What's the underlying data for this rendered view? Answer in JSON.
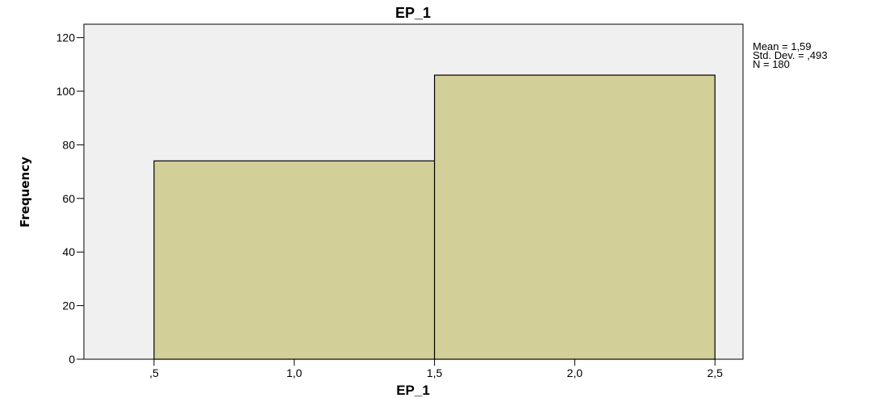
{
  "chart_data": {
    "type": "bar",
    "title": "EP_1",
    "xlabel": "EP_1",
    "ylabel": "Frequency",
    "bins": [
      {
        "x0": 0.5,
        "x1": 1.5,
        "value": 74
      },
      {
        "x0": 1.5,
        "x1": 2.5,
        "value": 106
      }
    ],
    "xlim": [
      0.25,
      2.6
    ],
    "ylim": [
      0,
      125
    ],
    "x_ticks": [
      0.5,
      1.0,
      1.5,
      2.0,
      2.5
    ],
    "x_tick_labels": [
      ",5",
      "1,0",
      "1,5",
      "2,0",
      "2,5"
    ],
    "y_ticks": [
      0,
      20,
      40,
      60,
      80,
      100,
      120
    ],
    "y_tick_labels": [
      "0",
      "20",
      "40",
      "60",
      "80",
      "100",
      "120"
    ],
    "grid": false,
    "bar_color": "#d3cf98",
    "plot_background": "#f0f0f0",
    "stats": {
      "mean_label": "Mean = 1,59",
      "sd_label": "Std. Dev. = ,493",
      "n_label": "N = 180"
    }
  }
}
